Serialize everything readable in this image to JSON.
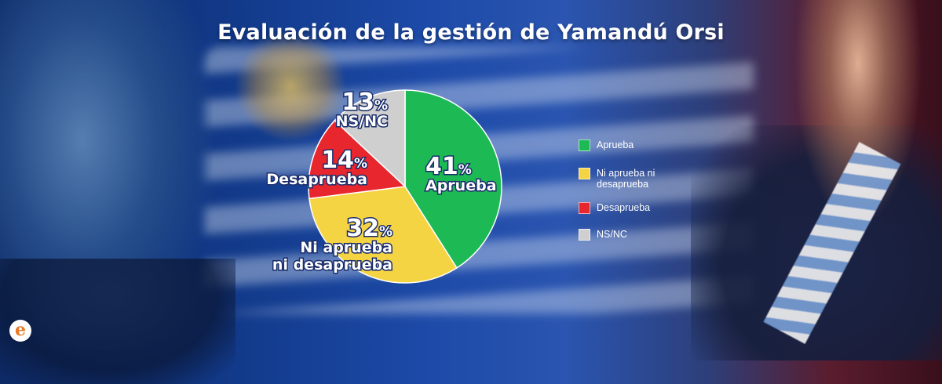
{
  "title": "Evaluación de la gestión de Yamandú Orsi",
  "chart_data": {
    "type": "pie",
    "title": "Evaluación de la gestión de Yamandú Orsi",
    "categories": [
      "Aprueba",
      "Ni aprueba ni desaprueba",
      "Desaprueba",
      "NS/NC"
    ],
    "values": [
      41,
      32,
      14,
      13
    ],
    "unit": "%",
    "colors": [
      "#1db954",
      "#f5d443",
      "#e8262d",
      "#cfcfcf"
    ],
    "slice_labels": [
      {
        "value_text": "41",
        "pct": "%",
        "name_lines": [
          "Aprueba"
        ]
      },
      {
        "value_text": "32",
        "pct": "%",
        "name_lines": [
          "Ni aprueba",
          "ni desaprueba"
        ]
      },
      {
        "value_text": "14",
        "pct": "%",
        "name_lines": [
          "Desaprueba"
        ]
      },
      {
        "value_text": "13",
        "pct": "%",
        "name_lines": [
          "NS/NC"
        ]
      }
    ],
    "legend": {
      "position": "right",
      "items": [
        {
          "label": "Aprueba",
          "color": "#1db954"
        },
        {
          "label": "Ni aprueba ni desaprueba",
          "color": "#f5d443"
        },
        {
          "label": "Desaprueba",
          "color": "#e8262d"
        },
        {
          "label": "NS/NC",
          "color": "#cfcfcf"
        }
      ]
    }
  },
  "logo": {
    "glyph": "e"
  }
}
